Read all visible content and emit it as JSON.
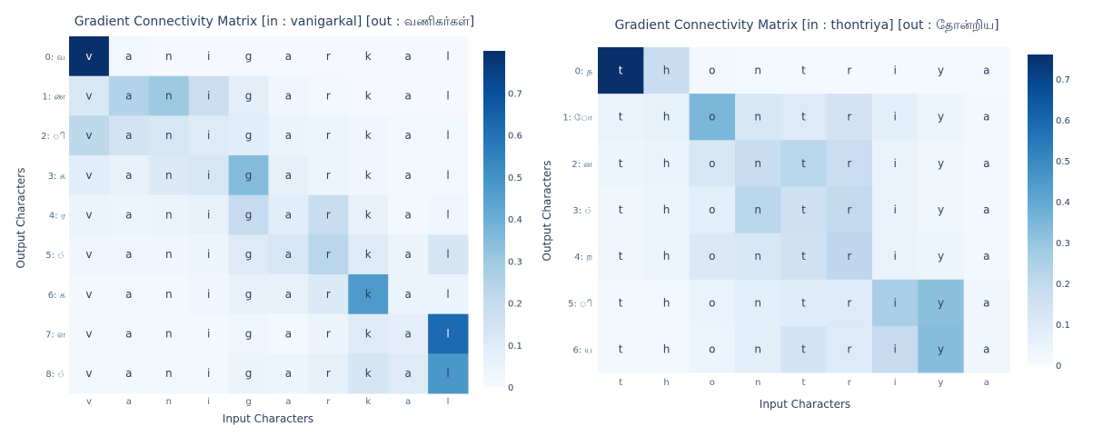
{
  "chart_data": [
    {
      "type": "heatmap",
      "title": "Gradient Connectivity Matrix [in : vanigarkal] [out : வணிகர்கள்]",
      "xlabel": "Input Characters",
      "ylabel": "Output Characters",
      "x": [
        "v",
        "a",
        "n",
        "i",
        "g",
        "a",
        "r",
        "k",
        "a",
        "l"
      ],
      "y": [
        "0: வ",
        "1: ண",
        "2: ி",
        "3: க",
        "4: ர",
        "5: ்",
        "6: க",
        "7: ள",
        "8: ்"
      ],
      "z": [
        [
          0.8,
          0.02,
          0.01,
          0.01,
          0.01,
          0.01,
          0.01,
          0.01,
          0.01,
          0.01
        ],
        [
          0.12,
          0.25,
          0.3,
          0.18,
          0.08,
          0.03,
          0.02,
          0.01,
          0.01,
          0.01
        ],
        [
          0.22,
          0.15,
          0.13,
          0.1,
          0.09,
          0.05,
          0.04,
          0.03,
          0.02,
          0.02
        ],
        [
          0.09,
          0.06,
          0.11,
          0.13,
          0.35,
          0.07,
          0.04,
          0.03,
          0.02,
          0.02
        ],
        [
          0.05,
          0.04,
          0.05,
          0.06,
          0.2,
          0.09,
          0.19,
          0.06,
          0.02,
          0.03
        ],
        [
          0.03,
          0.03,
          0.03,
          0.04,
          0.1,
          0.13,
          0.23,
          0.1,
          0.05,
          0.14
        ],
        [
          0.02,
          0.02,
          0.02,
          0.03,
          0.06,
          0.06,
          0.11,
          0.47,
          0.05,
          0.05
        ],
        [
          0.02,
          0.02,
          0.02,
          0.02,
          0.03,
          0.02,
          0.05,
          0.1,
          0.08,
          0.62
        ],
        [
          0.02,
          0.02,
          0.02,
          0.02,
          0.05,
          0.04,
          0.07,
          0.14,
          0.1,
          0.48
        ]
      ],
      "zlim": [
        0,
        0.8
      ],
      "colorbar_ticks": [
        0,
        0.1,
        0.2,
        0.3,
        0.4,
        0.5,
        0.6,
        0.7
      ],
      "colorscale": "Blues",
      "grid": false
    },
    {
      "type": "heatmap",
      "title": "Gradient Connectivity Matrix [in : thontriya] [out : தோன்றிய]",
      "xlabel": "Input Characters",
      "ylabel": "Output Characters",
      "x": [
        "t",
        "h",
        "o",
        "n",
        "t",
        "r",
        "i",
        "y",
        "a"
      ],
      "y": [
        "0: த",
        "1: ோ",
        "2: ன",
        "3: ்",
        "4: ற",
        "5: ி",
        "6: ய"
      ],
      "z": [
        [
          0.76,
          0.18,
          0.02,
          0.01,
          0.01,
          0.01,
          0.01,
          0.01,
          0.01
        ],
        [
          0.05,
          0.06,
          0.35,
          0.12,
          0.1,
          0.14,
          0.08,
          0.04,
          0.02
        ],
        [
          0.04,
          0.05,
          0.12,
          0.18,
          0.22,
          0.17,
          0.05,
          0.03,
          0.02
        ],
        [
          0.03,
          0.04,
          0.08,
          0.22,
          0.16,
          0.2,
          0.05,
          0.03,
          0.02
        ],
        [
          0.03,
          0.04,
          0.11,
          0.12,
          0.15,
          0.21,
          0.05,
          0.04,
          0.02
        ],
        [
          0.02,
          0.02,
          0.05,
          0.08,
          0.09,
          0.1,
          0.26,
          0.32,
          0.03
        ],
        [
          0.02,
          0.02,
          0.04,
          0.08,
          0.14,
          0.1,
          0.19,
          0.33,
          0.03
        ]
      ],
      "zlim": [
        0,
        0.76
      ],
      "colorbar_ticks": [
        0,
        0.1,
        0.2,
        0.3,
        0.4,
        0.5,
        0.6,
        0.7
      ],
      "colorscale": "Blues",
      "grid": false
    }
  ]
}
